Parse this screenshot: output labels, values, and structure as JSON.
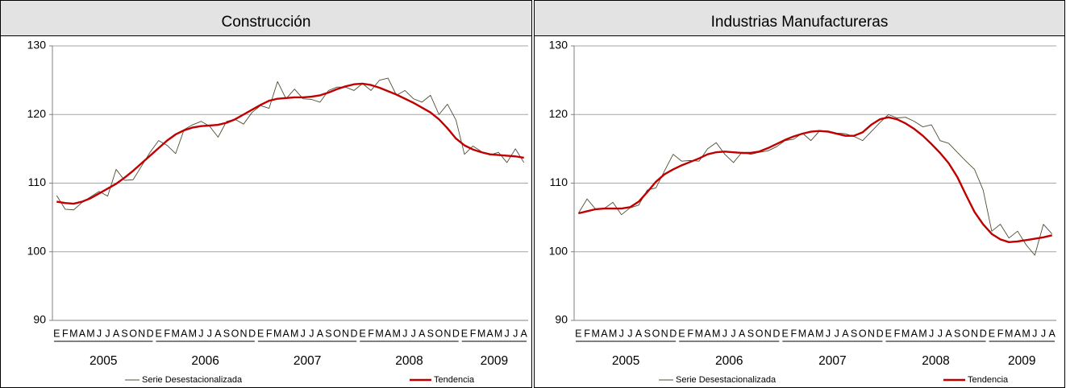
{
  "chart_data": [
    {
      "type": "line",
      "title": "Construcción",
      "categories": [
        "E",
        "F",
        "M",
        "A",
        "M",
        "J",
        "J",
        "A",
        "S",
        "O",
        "N",
        "D",
        "E",
        "F",
        "M",
        "A",
        "M",
        "J",
        "J",
        "A",
        "S",
        "O",
        "N",
        "D",
        "E",
        "F",
        "M",
        "A",
        "M",
        "J",
        "J",
        "A",
        "S",
        "O",
        "N",
        "D",
        "E",
        "F",
        "M",
        "A",
        "M",
        "J",
        "J",
        "A",
        "S",
        "O",
        "N",
        "D",
        "E",
        "F",
        "M",
        "A",
        "M",
        "J",
        "J",
        "A"
      ],
      "groups": [
        "2005",
        "2006",
        "2007",
        "2008",
        "2009"
      ],
      "ylim": [
        90,
        130
      ],
      "yticks": [
        90,
        100,
        110,
        120,
        130
      ],
      "grid": true,
      "series": [
        {
          "name": "Serie Desestacionalizada",
          "color": "#4d4d33",
          "values": [
            108.2,
            106.2,
            106.1,
            107.2,
            108.0,
            108.8,
            108.1,
            112.0,
            110.4,
            110.5,
            112.5,
            114.5,
            116.2,
            115.5,
            114.3,
            117.8,
            118.5,
            119.0,
            118.3,
            116.7,
            119.0,
            119.3,
            118.6,
            120.3,
            121.3,
            120.9,
            124.8,
            122.3,
            123.7,
            122.3,
            122.2,
            121.8,
            123.5,
            124.0,
            124.0,
            123.5,
            124.5,
            123.5,
            125.0,
            125.3,
            122.8,
            123.5,
            122.3,
            121.8,
            122.8,
            120.0,
            121.5,
            119.2,
            114.2,
            115.4,
            114.6,
            114.1,
            114.5,
            113.0,
            115.0,
            113.0
          ]
        },
        {
          "name": "Tendencia",
          "color": "#c00000",
          "values": [
            107.3,
            107.1,
            107.0,
            107.3,
            107.8,
            108.5,
            109.2,
            109.9,
            110.8,
            111.8,
            112.9,
            114.0,
            115.1,
            116.2,
            117.1,
            117.7,
            118.1,
            118.3,
            118.4,
            118.5,
            118.8,
            119.3,
            120.0,
            120.7,
            121.4,
            122.0,
            122.3,
            122.4,
            122.5,
            122.5,
            122.6,
            122.8,
            123.2,
            123.7,
            124.1,
            124.4,
            124.5,
            124.3,
            123.9,
            123.4,
            122.9,
            122.3,
            121.7,
            121.0,
            120.3,
            119.3,
            118.0,
            116.5,
            115.5,
            114.9,
            114.5,
            114.2,
            114.1,
            114.0,
            113.9,
            113.7
          ]
        }
      ]
    },
    {
      "type": "line",
      "title": "Industrias Manufactureras",
      "categories": [
        "E",
        "F",
        "M",
        "A",
        "M",
        "J",
        "J",
        "A",
        "S",
        "O",
        "N",
        "D",
        "E",
        "F",
        "M",
        "A",
        "M",
        "J",
        "J",
        "A",
        "S",
        "O",
        "N",
        "D",
        "E",
        "F",
        "M",
        "A",
        "M",
        "J",
        "J",
        "A",
        "S",
        "O",
        "N",
        "D",
        "E",
        "F",
        "M",
        "A",
        "M",
        "J",
        "J",
        "A",
        "S",
        "O",
        "N",
        "D",
        "E",
        "F",
        "M",
        "A",
        "M",
        "J",
        "J",
        "A"
      ],
      "groups": [
        "2005",
        "2006",
        "2007",
        "2008",
        "2009"
      ],
      "ylim": [
        90,
        130
      ],
      "yticks": [
        90,
        100,
        110,
        120,
        130
      ],
      "grid": true,
      "series": [
        {
          "name": "Serie Desestacionalizada",
          "color": "#4d4d33",
          "values": [
            105.6,
            107.7,
            106.2,
            106.3,
            107.2,
            105.4,
            106.4,
            106.8,
            109.0,
            109.3,
            111.8,
            114.2,
            113.2,
            113.3,
            113.2,
            115.0,
            115.9,
            114.2,
            113.0,
            114.5,
            114.2,
            114.5,
            114.7,
            115.3,
            116.2,
            116.4,
            117.3,
            116.2,
            117.6,
            117.6,
            117.3,
            117.2,
            116.8,
            116.2,
            117.5,
            118.8,
            120.0,
            119.5,
            119.6,
            119.0,
            118.2,
            118.5,
            116.2,
            115.8,
            114.5,
            113.2,
            112.0,
            109.0,
            103.0,
            104.0,
            102.0,
            103.0,
            101.0,
            99.5,
            104.0,
            102.6
          ]
        },
        {
          "name": "Tendencia",
          "color": "#c00000",
          "values": [
            105.6,
            105.9,
            106.2,
            106.3,
            106.3,
            106.3,
            106.5,
            107.3,
            108.7,
            110.2,
            111.3,
            112.0,
            112.6,
            113.1,
            113.6,
            114.2,
            114.5,
            114.6,
            114.5,
            114.4,
            114.4,
            114.6,
            115.1,
            115.7,
            116.3,
            116.8,
            117.2,
            117.5,
            117.6,
            117.5,
            117.2,
            116.9,
            116.9,
            117.4,
            118.5,
            119.3,
            119.6,
            119.3,
            118.7,
            117.9,
            116.9,
            115.7,
            114.4,
            112.9,
            110.9,
            108.3,
            105.8,
            104.0,
            102.6,
            101.8,
            101.4,
            101.5,
            101.7,
            101.9,
            102.1,
            102.4
          ]
        }
      ]
    }
  ]
}
